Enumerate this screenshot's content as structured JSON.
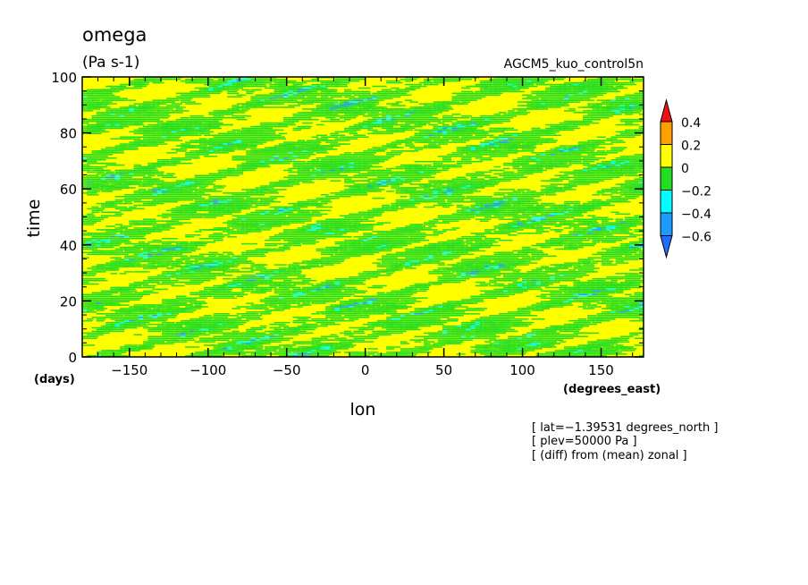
{
  "chart_data": {
    "type": "heatmap",
    "title": "omega",
    "units": "(Pa s-1)",
    "dataset_label": "AGCM5_kuo_control5n",
    "xlabel": "lon",
    "xunits": "(degrees_east)",
    "ylabel": "time",
    "yunits": "(days)",
    "xlim": [
      -180,
      177
    ],
    "ylim": [
      0,
      100
    ],
    "xticks": [
      -150,
      -100,
      -50,
      0,
      50,
      100,
      150
    ],
    "yticks": [
      0,
      20,
      40,
      60,
      80,
      100
    ],
    "xtick_labels": [
      "−150",
      "−100",
      "−50",
      "0",
      "50",
      "100",
      "150"
    ],
    "ytick_labels": [
      "0",
      "20",
      "40",
      "60",
      "80",
      "100"
    ],
    "colorbar": {
      "levels": [
        -0.6,
        -0.4,
        -0.2,
        0,
        0.2,
        0.4
      ],
      "labels": [
        "0.4",
        "0.2",
        "0",
        "−0.2",
        "−0.4",
        "−0.6"
      ],
      "colors": {
        "below_-0.6": "#1e6eff",
        "-0.6_to_-0.4": "#1e9bff",
        "-0.4_to_-0.2": "#00ffff",
        "-0.2_to_0": "#22dd22",
        "0_to_0.2": "#ffff00",
        "0.2_to_0.4": "#ffa000",
        "above_0.4": "#ee1111"
      },
      "extend": "both"
    },
    "field_description_fractions": {
      "0_to_0.2": 0.55,
      "-0.2_to_0": 0.4,
      "-0.4_to_-0.2": 0.04,
      "-0.6_to_-0.4": 0.01
    },
    "annotations": [
      "[ lat=−1.39531 degrees_north ]",
      "[ plev=50000 Pa ]",
      "[ (diff) from (mean) zonal ]"
    ],
    "grid": false
  }
}
